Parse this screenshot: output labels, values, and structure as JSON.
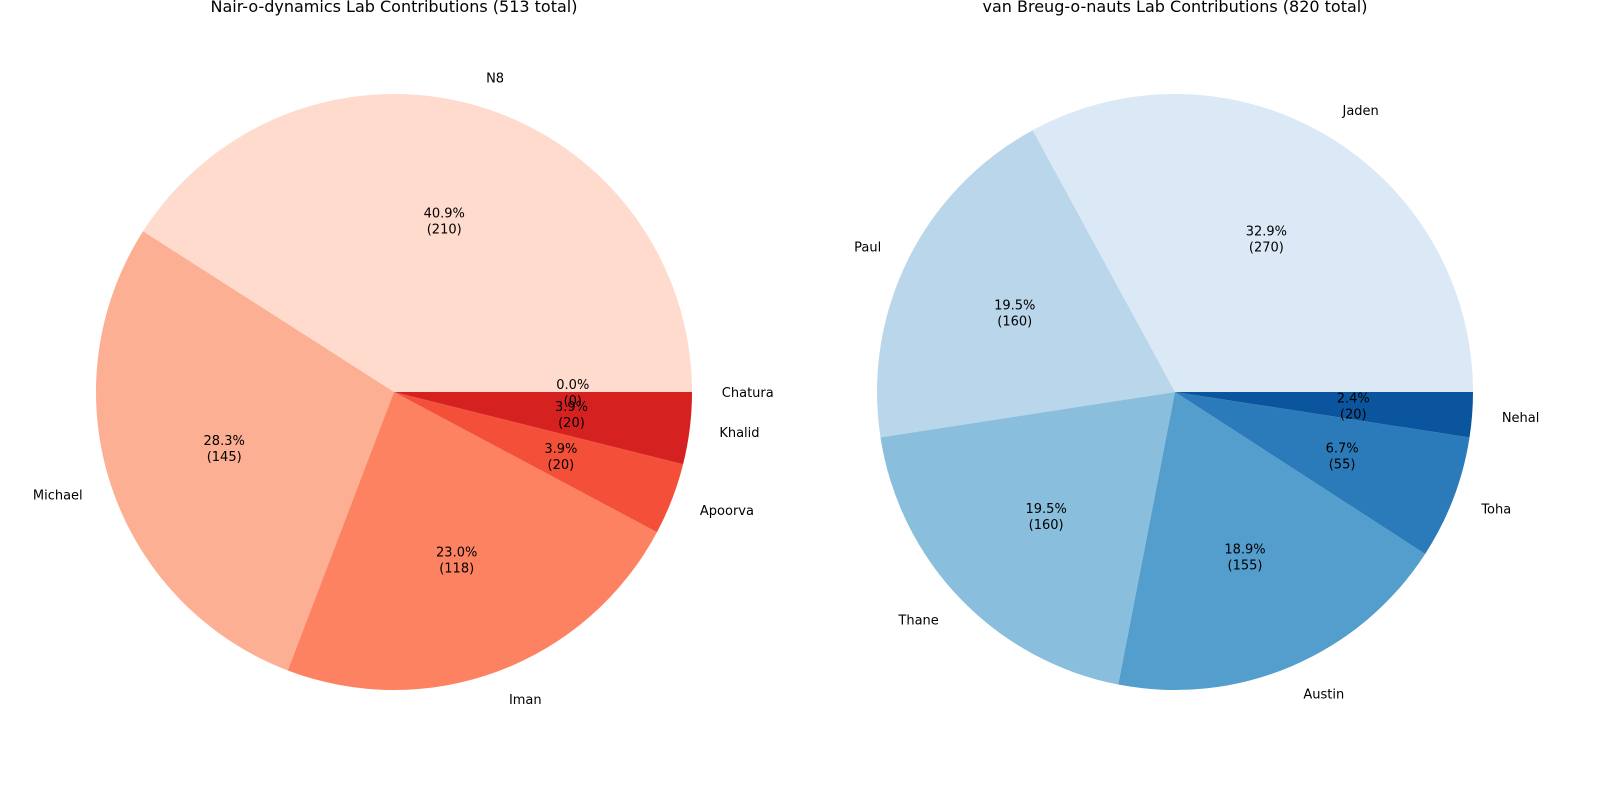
{
  "chart_data": [
    {
      "type": "pie",
      "title": "Nair-o-dynamics Lab Contributions (513 total)",
      "categories": [
        "N8",
        "Michael",
        "Iman",
        "Apoorva",
        "Khalid",
        "Chatura"
      ],
      "values": [
        210,
        145,
        118,
        20,
        20,
        0
      ],
      "percent_labels": [
        "40.9%",
        "28.3%",
        "23.0%",
        "3.9%",
        "3.9%",
        "0.0%"
      ],
      "count_labels": [
        "(210)",
        "(145)",
        "(118)",
        "(20)",
        "(20)",
        "(0)"
      ],
      "colors": [
        "#fedbcc",
        "#fcaf93",
        "#fc8262",
        "#f44f39",
        "#d52221",
        "#d52221"
      ],
      "start_angle_deg": 0,
      "direction": "counterclockwise"
    },
    {
      "type": "pie",
      "title": "van Breug-o-nauts Lab Contributions (820 total)",
      "categories": [
        "Jaden",
        "Paul",
        "Thane",
        "Austin",
        "Toha",
        "Nehal"
      ],
      "values": [
        270,
        160,
        160,
        155,
        55,
        20
      ],
      "percent_labels": [
        "32.9%",
        "19.5%",
        "19.5%",
        "18.9%",
        "6.7%",
        "2.4%"
      ],
      "count_labels": [
        "(270)",
        "(160)",
        "(160)",
        "(155)",
        "(55)",
        "(20)"
      ],
      "colors": [
        "#dbe9f6",
        "#bad6eb",
        "#89bedc",
        "#539ecd",
        "#2b7bba",
        "#0b559f"
      ],
      "start_angle_deg": 0,
      "direction": "counterclockwise"
    }
  ]
}
